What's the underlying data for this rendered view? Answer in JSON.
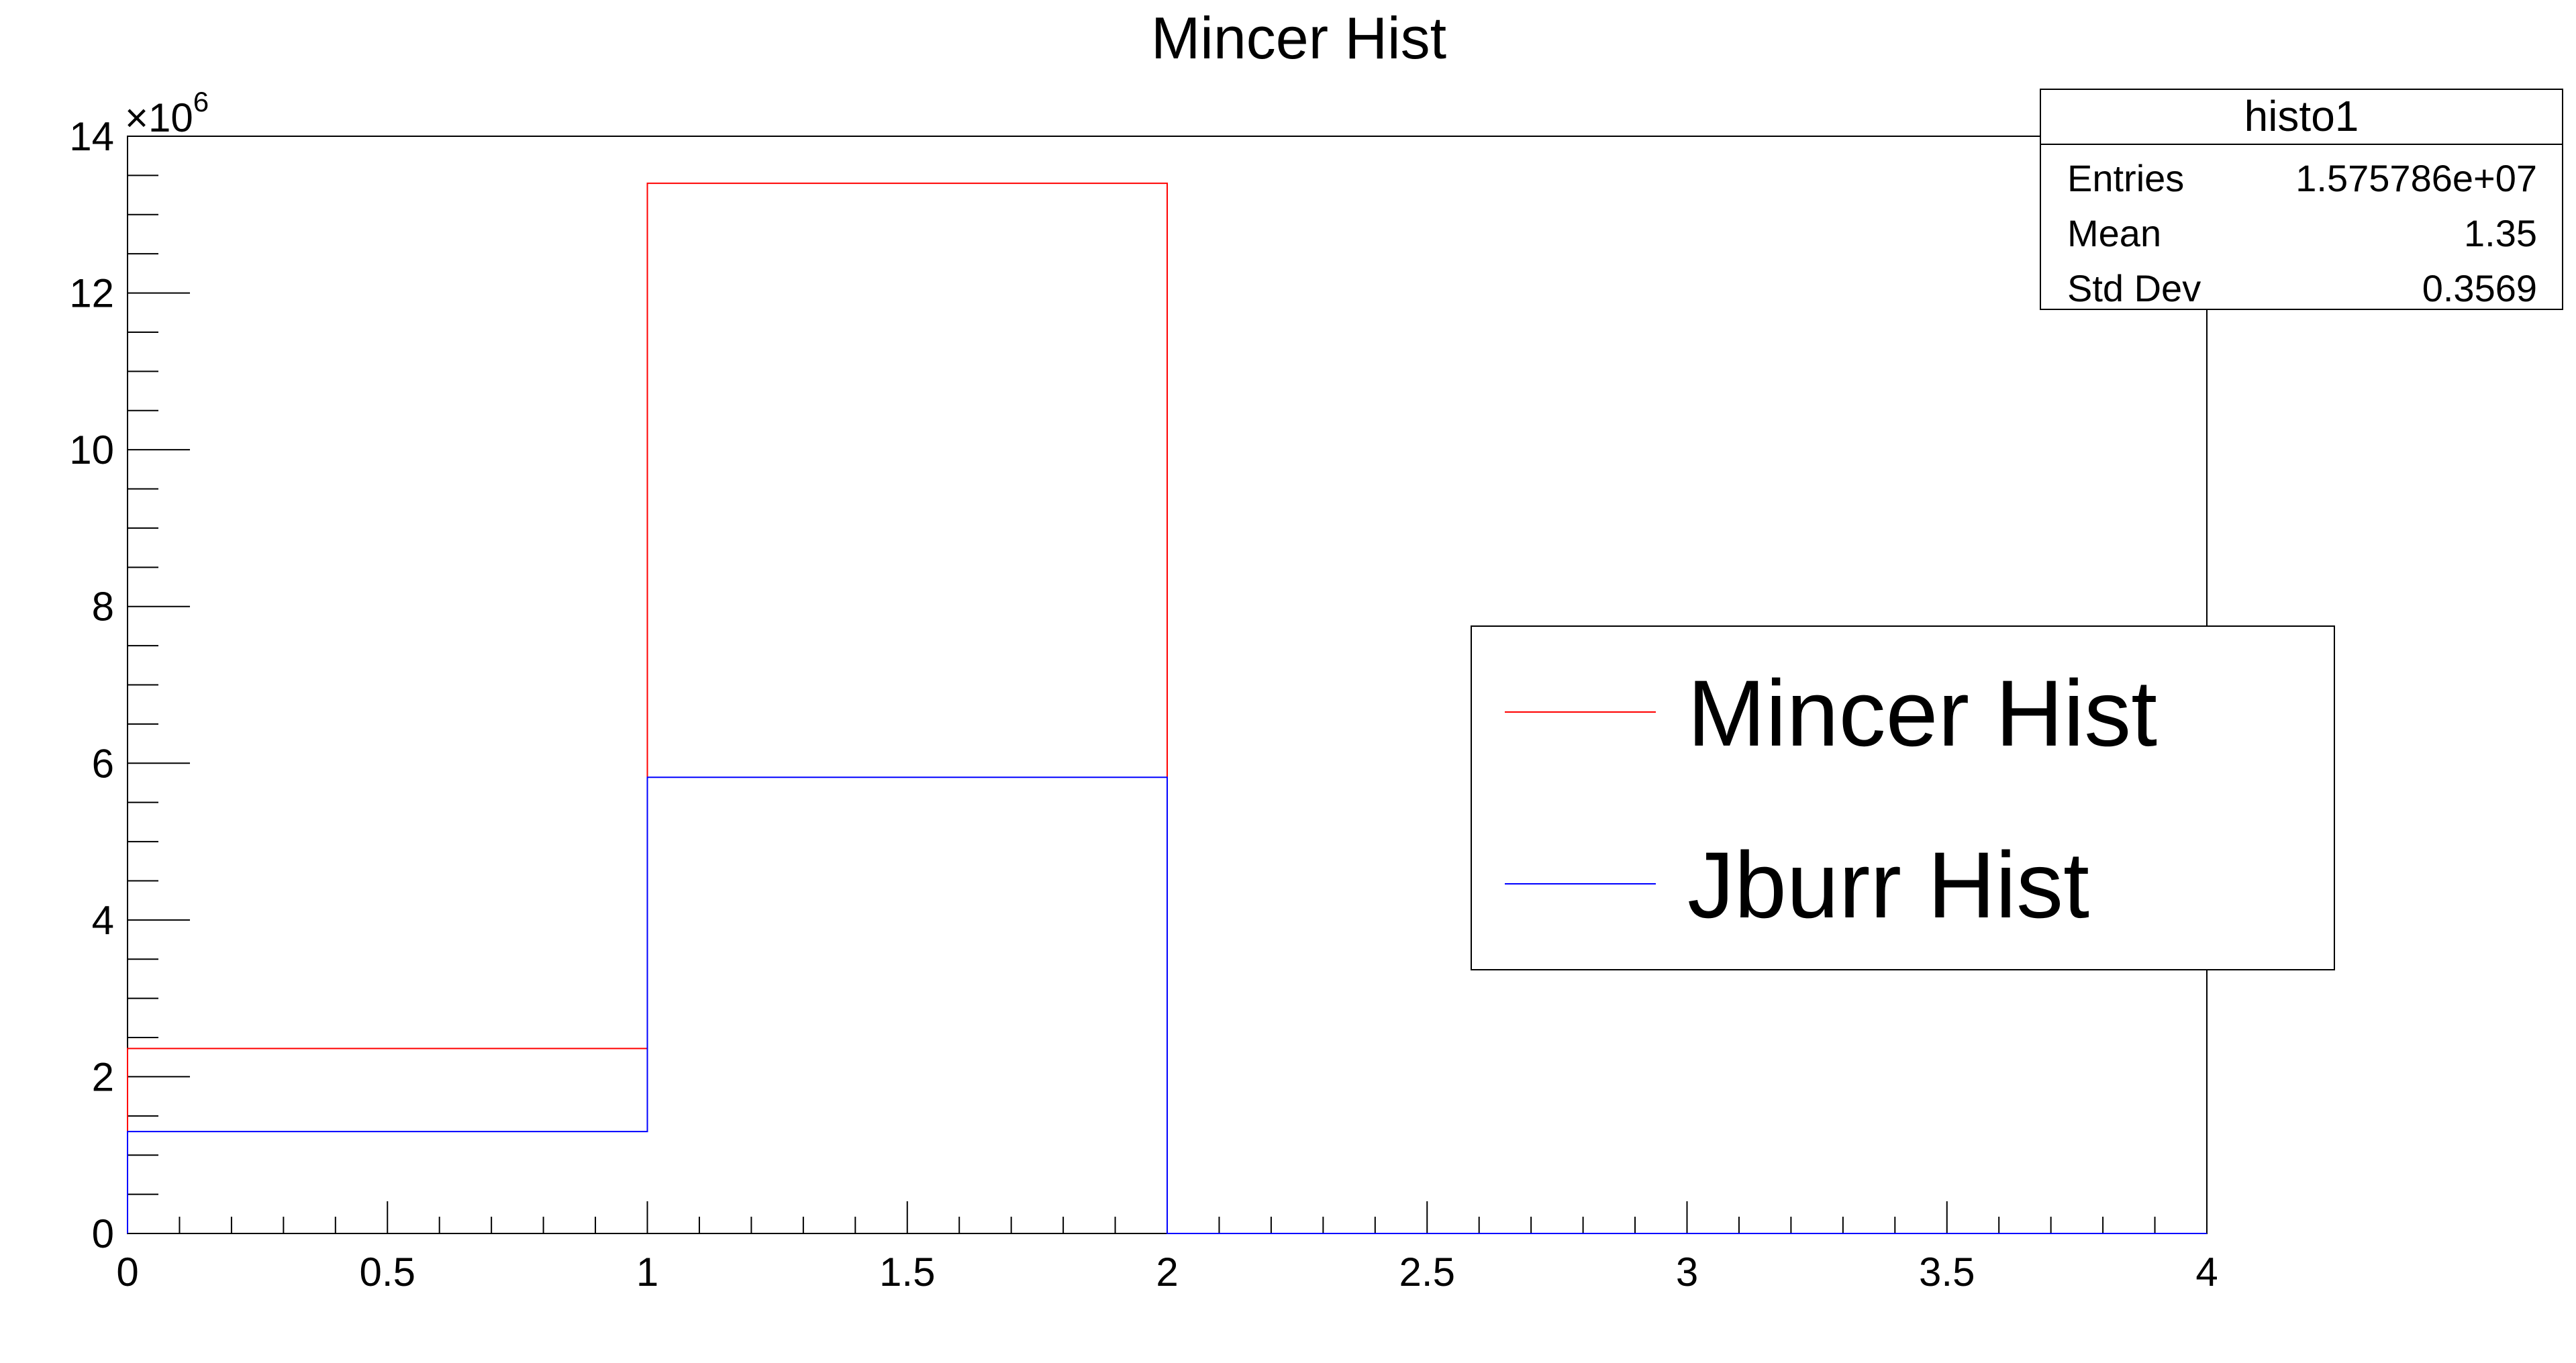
{
  "chart_data": {
    "type": "histogram",
    "title": "Mincer Hist",
    "xlabel": "",
    "ylabel": "",
    "y_multiplier_label": "×10",
    "y_multiplier_exponent": "6",
    "xlim": [
      0,
      4
    ],
    "ylim": [
      0,
      14
    ],
    "x_ticks": [
      0,
      0.5,
      1,
      1.5,
      2,
      2.5,
      3,
      3.5,
      4
    ],
    "x_tick_labels": [
      "0",
      "0.5",
      "1",
      "1.5",
      "2",
      "2.5",
      "3",
      "3.5",
      "4"
    ],
    "y_ticks": [
      0,
      2,
      4,
      6,
      8,
      10,
      12,
      14
    ],
    "y_tick_labels": [
      "0",
      "2",
      "4",
      "6",
      "8",
      "10",
      "12",
      "14"
    ],
    "bin_edges": [
      0,
      1,
      2,
      3,
      4
    ],
    "series": [
      {
        "name": "Mincer Hist",
        "color": "#ff0000",
        "values": [
          2.36,
          13.4,
          0,
          0
        ]
      },
      {
        "name": "Jburr Hist",
        "color": "#0000ff",
        "values": [
          1.3,
          5.82,
          0,
          0
        ]
      }
    ],
    "stats_box": {
      "title": "histo1",
      "rows": [
        {
          "label": "Entries",
          "value": "1.575786e+07"
        },
        {
          "label": "Mean",
          "value": "1.35"
        },
        {
          "label": "Std Dev",
          "value": "0.3569"
        }
      ]
    },
    "legend": {
      "placement": "center-right",
      "entries": [
        {
          "label": "Mincer Hist",
          "color": "#ff0000"
        },
        {
          "label": "Jburr Hist",
          "color": "#0000ff"
        }
      ]
    }
  }
}
